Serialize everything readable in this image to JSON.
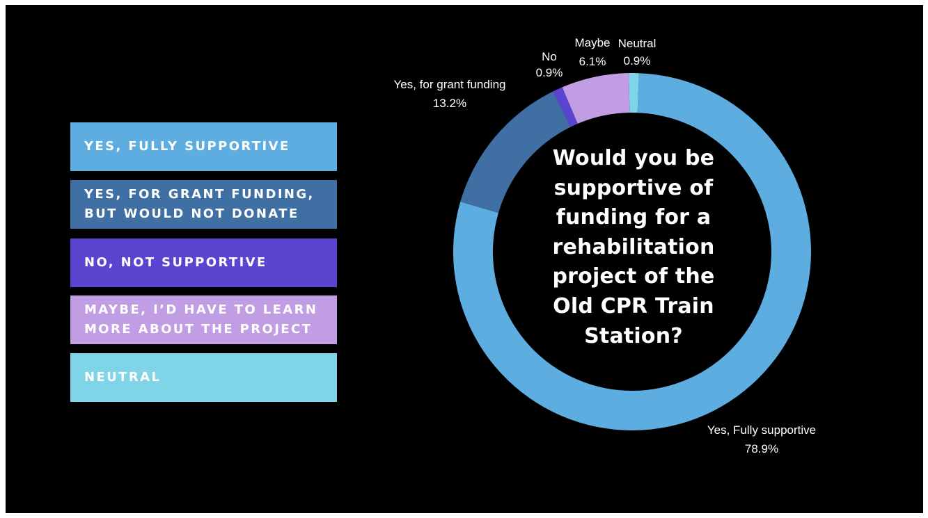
{
  "chart_data": {
    "type": "pie",
    "style": "donut",
    "title": "Would you be\nsupportive of\nfunding for a\nrehabilitation\nproject of the\nOld CPR Train\nStation?",
    "slices": [
      {
        "key": "fully",
        "label": "Yes, Fully supportive",
        "value": 78.9,
        "value_label": "78.9%",
        "color": "#5dade0"
      },
      {
        "key": "grant",
        "label": "Yes, for grant funding",
        "value": 13.2,
        "value_label": "13.2%",
        "color": "#3f6fa3"
      },
      {
        "key": "no",
        "label": "No",
        "value": 0.9,
        "value_label": "0.9%",
        "color": "#5b45d0"
      },
      {
        "key": "maybe",
        "label": "Maybe",
        "value": 6.1,
        "value_label": "6.1%",
        "color": "#c19de3"
      },
      {
        "key": "neutral",
        "label": "Neutral",
        "value": 0.9,
        "value_label": "0.9%",
        "color": "#7fd5e7"
      }
    ],
    "legend": {
      "placement": "left",
      "items": [
        {
          "label": "YES, FULLY SUPPORTIVE",
          "color": "#5dade0"
        },
        {
          "label": "YES, FOR GRANT FUNDING,\nBUT WOULD NOT DONATE",
          "color": "#3f6fa3"
        },
        {
          "label": "NO, NOT SUPPORTIVE",
          "color": "#5b45d0"
        },
        {
          "label": "MAYBE, I’D HAVE TO LEARN\nMORE ABOUT THE PROJECT",
          "color": "#c19de3"
        },
        {
          "label": "NEUTRAL",
          "color": "#7fd5e7"
        }
      ]
    }
  }
}
